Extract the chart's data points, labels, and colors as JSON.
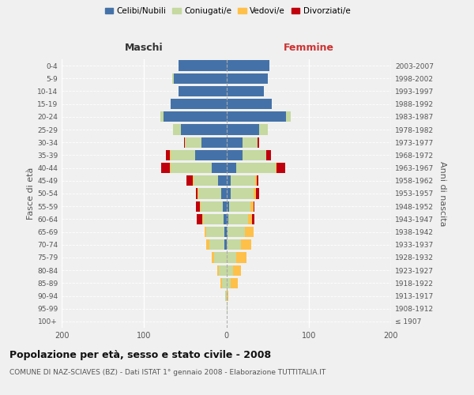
{
  "age_groups": [
    "100+",
    "95-99",
    "90-94",
    "85-89",
    "80-84",
    "75-79",
    "70-74",
    "65-69",
    "60-64",
    "55-59",
    "50-54",
    "45-49",
    "40-44",
    "35-39",
    "30-34",
    "25-29",
    "20-24",
    "15-19",
    "10-14",
    "5-9",
    "0-4"
  ],
  "birth_years": [
    "≤ 1907",
    "1908-1912",
    "1913-1917",
    "1918-1922",
    "1923-1927",
    "1928-1932",
    "1933-1937",
    "1938-1942",
    "1943-1947",
    "1948-1952",
    "1953-1957",
    "1958-1962",
    "1963-1967",
    "1968-1972",
    "1973-1977",
    "1978-1982",
    "1983-1987",
    "1988-1992",
    "1993-1997",
    "1998-2002",
    "2003-2007"
  ],
  "males": {
    "celibi": [
      0,
      0,
      0,
      0,
      0,
      0,
      2,
      2,
      3,
      4,
      6,
      10,
      18,
      38,
      30,
      55,
      76,
      68,
      58,
      64,
      58
    ],
    "coniugati": [
      0,
      0,
      1,
      5,
      9,
      15,
      19,
      22,
      25,
      27,
      28,
      30,
      50,
      30,
      20,
      10,
      4,
      0,
      0,
      2,
      0
    ],
    "vedovi": [
      0,
      0,
      0,
      2,
      2,
      3,
      3,
      2,
      1,
      1,
      1,
      1,
      1,
      1,
      0,
      0,
      0,
      0,
      0,
      0,
      0
    ],
    "divorziati": [
      0,
      0,
      0,
      0,
      0,
      0,
      0,
      0,
      7,
      5,
      2,
      7,
      10,
      4,
      1,
      0,
      0,
      0,
      0,
      0,
      0
    ]
  },
  "females": {
    "nubili": [
      0,
      0,
      0,
      0,
      0,
      0,
      0,
      1,
      2,
      3,
      5,
      5,
      12,
      20,
      20,
      40,
      72,
      55,
      46,
      50,
      52
    ],
    "coniugate": [
      0,
      1,
      0,
      5,
      8,
      12,
      18,
      22,
      24,
      26,
      28,
      30,
      48,
      28,
      18,
      10,
      6,
      0,
      0,
      0,
      0
    ],
    "vedove": [
      0,
      0,
      2,
      9,
      10,
      12,
      12,
      10,
      5,
      4,
      3,
      2,
      1,
      0,
      0,
      0,
      0,
      0,
      0,
      0,
      0
    ],
    "divorziate": [
      0,
      0,
      0,
      0,
      0,
      0,
      0,
      0,
      3,
      1,
      4,
      2,
      10,
      6,
      2,
      0,
      0,
      0,
      0,
      0,
      0
    ]
  },
  "colors": {
    "celibi": "#4472a8",
    "coniugati": "#c5d9a0",
    "vedovi": "#ffc04a",
    "divorziati": "#c0000c"
  },
  "xlim": 200,
  "title": "Popolazione per età, sesso e stato civile - 2008",
  "subtitle": "COMUNE DI NAZ-SCIAVES (BZ) - Dati ISTAT 1° gennaio 2008 - Elaborazione TUTTITALIA.IT",
  "ylabel_left": "Fasce di età",
  "ylabel_right": "Anni di nascita",
  "label_maschi": "Maschi",
  "label_femmine": "Femmine",
  "legend_labels": [
    "Celibi/Nubili",
    "Coniugati/e",
    "Vedovi/e",
    "Divorziati/e"
  ],
  "background_color": "#f0f0f0"
}
